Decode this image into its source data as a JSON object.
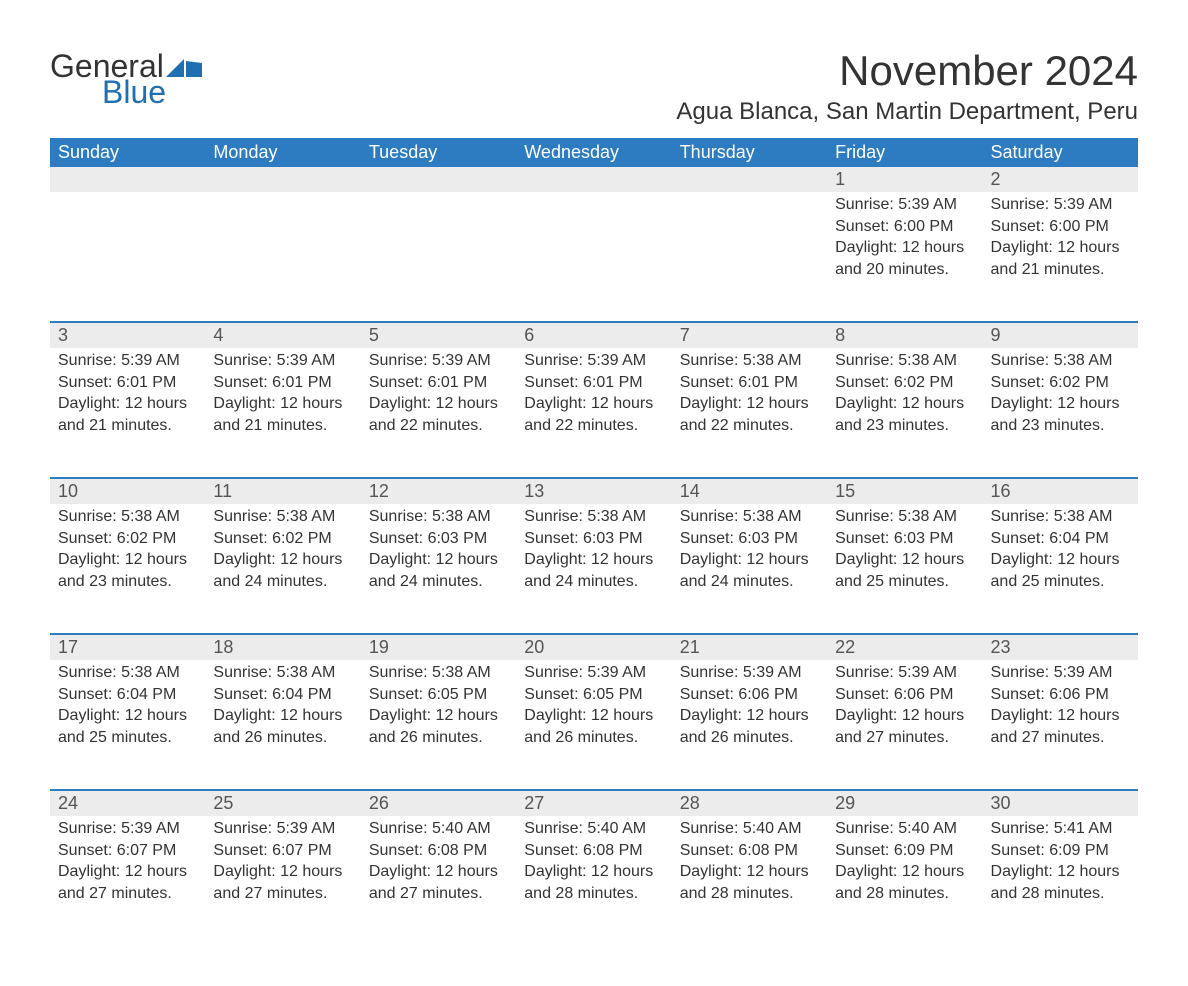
{
  "logo": {
    "text1": "General",
    "text2": "Blue",
    "flag_color": "#1f6fb2"
  },
  "title": "November 2024",
  "location": "Agua Blanca, San Martin Department, Peru",
  "colors": {
    "header_bg": "#2d7cc1",
    "header_text": "#ffffff",
    "daynum_bg": "#ececec",
    "rule": "#2d7cc1",
    "text": "#333333"
  },
  "weekdays": [
    "Sunday",
    "Monday",
    "Tuesday",
    "Wednesday",
    "Thursday",
    "Friday",
    "Saturday"
  ],
  "weeks": [
    [
      null,
      null,
      null,
      null,
      null,
      {
        "n": "1",
        "sunrise": "5:39 AM",
        "sunset": "6:00 PM",
        "day_h": "12",
        "day_m": "20"
      },
      {
        "n": "2",
        "sunrise": "5:39 AM",
        "sunset": "6:00 PM",
        "day_h": "12",
        "day_m": "21"
      }
    ],
    [
      {
        "n": "3",
        "sunrise": "5:39 AM",
        "sunset": "6:01 PM",
        "day_h": "12",
        "day_m": "21"
      },
      {
        "n": "4",
        "sunrise": "5:39 AM",
        "sunset": "6:01 PM",
        "day_h": "12",
        "day_m": "21"
      },
      {
        "n": "5",
        "sunrise": "5:39 AM",
        "sunset": "6:01 PM",
        "day_h": "12",
        "day_m": "22"
      },
      {
        "n": "6",
        "sunrise": "5:39 AM",
        "sunset": "6:01 PM",
        "day_h": "12",
        "day_m": "22"
      },
      {
        "n": "7",
        "sunrise": "5:38 AM",
        "sunset": "6:01 PM",
        "day_h": "12",
        "day_m": "22"
      },
      {
        "n": "8",
        "sunrise": "5:38 AM",
        "sunset": "6:02 PM",
        "day_h": "12",
        "day_m": "23"
      },
      {
        "n": "9",
        "sunrise": "5:38 AM",
        "sunset": "6:02 PM",
        "day_h": "12",
        "day_m": "23"
      }
    ],
    [
      {
        "n": "10",
        "sunrise": "5:38 AM",
        "sunset": "6:02 PM",
        "day_h": "12",
        "day_m": "23"
      },
      {
        "n": "11",
        "sunrise": "5:38 AM",
        "sunset": "6:02 PM",
        "day_h": "12",
        "day_m": "24"
      },
      {
        "n": "12",
        "sunrise": "5:38 AM",
        "sunset": "6:03 PM",
        "day_h": "12",
        "day_m": "24"
      },
      {
        "n": "13",
        "sunrise": "5:38 AM",
        "sunset": "6:03 PM",
        "day_h": "12",
        "day_m": "24"
      },
      {
        "n": "14",
        "sunrise": "5:38 AM",
        "sunset": "6:03 PM",
        "day_h": "12",
        "day_m": "24"
      },
      {
        "n": "15",
        "sunrise": "5:38 AM",
        "sunset": "6:03 PM",
        "day_h": "12",
        "day_m": "25"
      },
      {
        "n": "16",
        "sunrise": "5:38 AM",
        "sunset": "6:04 PM",
        "day_h": "12",
        "day_m": "25"
      }
    ],
    [
      {
        "n": "17",
        "sunrise": "5:38 AM",
        "sunset": "6:04 PM",
        "day_h": "12",
        "day_m": "25"
      },
      {
        "n": "18",
        "sunrise": "5:38 AM",
        "sunset": "6:04 PM",
        "day_h": "12",
        "day_m": "26"
      },
      {
        "n": "19",
        "sunrise": "5:38 AM",
        "sunset": "6:05 PM",
        "day_h": "12",
        "day_m": "26"
      },
      {
        "n": "20",
        "sunrise": "5:39 AM",
        "sunset": "6:05 PM",
        "day_h": "12",
        "day_m": "26"
      },
      {
        "n": "21",
        "sunrise": "5:39 AM",
        "sunset": "6:06 PM",
        "day_h": "12",
        "day_m": "26"
      },
      {
        "n": "22",
        "sunrise": "5:39 AM",
        "sunset": "6:06 PM",
        "day_h": "12",
        "day_m": "27"
      },
      {
        "n": "23",
        "sunrise": "5:39 AM",
        "sunset": "6:06 PM",
        "day_h": "12",
        "day_m": "27"
      }
    ],
    [
      {
        "n": "24",
        "sunrise": "5:39 AM",
        "sunset": "6:07 PM",
        "day_h": "12",
        "day_m": "27"
      },
      {
        "n": "25",
        "sunrise": "5:39 AM",
        "sunset": "6:07 PM",
        "day_h": "12",
        "day_m": "27"
      },
      {
        "n": "26",
        "sunrise": "5:40 AM",
        "sunset": "6:08 PM",
        "day_h": "12",
        "day_m": "27"
      },
      {
        "n": "27",
        "sunrise": "5:40 AM",
        "sunset": "6:08 PM",
        "day_h": "12",
        "day_m": "28"
      },
      {
        "n": "28",
        "sunrise": "5:40 AM",
        "sunset": "6:08 PM",
        "day_h": "12",
        "day_m": "28"
      },
      {
        "n": "29",
        "sunrise": "5:40 AM",
        "sunset": "6:09 PM",
        "day_h": "12",
        "day_m": "28"
      },
      {
        "n": "30",
        "sunrise": "5:41 AM",
        "sunset": "6:09 PM",
        "day_h": "12",
        "day_m": "28"
      }
    ]
  ],
  "labels": {
    "sunrise": "Sunrise:",
    "sunset": "Sunset:",
    "daylight": "Daylight:",
    "hours_word": "hours",
    "and_word": "and",
    "minutes_word": "minutes."
  }
}
